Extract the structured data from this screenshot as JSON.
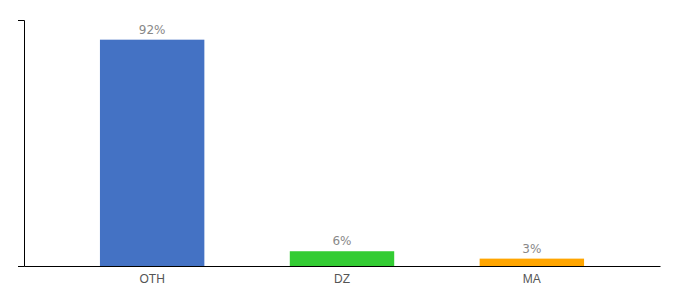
{
  "chart_data": {
    "type": "bar",
    "categories": [
      "OTH",
      "DZ",
      "MA"
    ],
    "values": [
      92,
      6,
      3
    ],
    "value_labels": [
      "92%",
      "6%",
      "3%"
    ],
    "colors": [
      "#4472c4",
      "#33cc33",
      "#ffa500"
    ],
    "data_labels": true,
    "ylim": [
      0,
      100
    ],
    "grid": false,
    "tick_labels": "x"
  }
}
